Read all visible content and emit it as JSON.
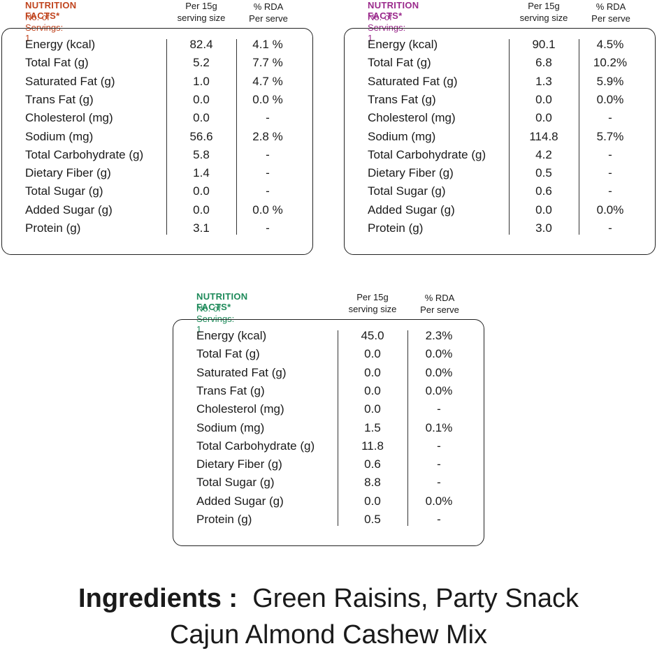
{
  "panels": [
    {
      "title": "NUTRITION FACTS*",
      "servings": "No. of Servings: 1",
      "accent": "#c0441e",
      "col1_head": [
        "Per 15g",
        "serving size"
      ],
      "col2_head": [
        "% RDA",
        "Per serve"
      ],
      "rows": [
        {
          "name": "Energy (kcal)",
          "v1": "82.4",
          "v2": "4.1 %"
        },
        {
          "name": "Total Fat (g)",
          "v1": "5.2",
          "v2": "7.7 %"
        },
        {
          "name": "Saturated Fat (g)",
          "v1": "1.0",
          "v2": "4.7 %"
        },
        {
          "name": "Trans Fat (g)",
          "v1": "0.0",
          "v2": "0.0 %"
        },
        {
          "name": "Cholesterol (mg)",
          "v1": "0.0",
          "v2": "-"
        },
        {
          "name": "Sodium (mg)",
          "v1": "56.6",
          "v2": "2.8 %"
        },
        {
          "name": "Total Carbohydrate (g)",
          "v1": "5.8",
          "v2": "-"
        },
        {
          "name": "Dietary Fiber (g)",
          "v1": "1.4",
          "v2": "-"
        },
        {
          "name": "Total Sugar (g)",
          "v1": "0.0",
          "v2": "-"
        },
        {
          "name": "Added Sugar (g)",
          "v1": "0.0",
          "v2": "0.0 %"
        },
        {
          "name": "Protein (g)",
          "v1": "3.1",
          "v2": "-"
        }
      ]
    },
    {
      "title": "NUTRITION FACTS*",
      "servings": "No. of Servings: 1",
      "accent": "#9b2a8c",
      "col1_head": [
        "Per 15g",
        "serving size"
      ],
      "col2_head": [
        "% RDA",
        "Per serve"
      ],
      "rows": [
        {
          "name": "Energy (kcal)",
          "v1": "90.1",
          "v2": "4.5%"
        },
        {
          "name": "Total Fat (g)",
          "v1": "6.8",
          "v2": "10.2%"
        },
        {
          "name": "Saturated Fat (g)",
          "v1": "1.3",
          "v2": "5.9%"
        },
        {
          "name": "Trans Fat (g)",
          "v1": "0.0",
          "v2": "0.0%"
        },
        {
          "name": "Cholesterol (mg)",
          "v1": "0.0",
          "v2": "-"
        },
        {
          "name": "Sodium (mg)",
          "v1": "114.8",
          "v2": "5.7%"
        },
        {
          "name": "Total Carbohydrate (g)",
          "v1": "4.2",
          "v2": "-"
        },
        {
          "name": "Dietary Fiber (g)",
          "v1": "0.5",
          "v2": "-"
        },
        {
          "name": "Total Sugar (g)",
          "v1": "0.6",
          "v2": "-"
        },
        {
          "name": "Added Sugar (g)",
          "v1": "0.0",
          "v2": "0.0%"
        },
        {
          "name": "Protein (g)",
          "v1": "3.0",
          "v2": "-"
        }
      ]
    },
    {
      "title": "NUTRITION FACTS*",
      "servings": "No. of Servings: 1",
      "accent": "#1e8a5a",
      "col1_head": [
        "Per 15g",
        "serving size"
      ],
      "col2_head": [
        "% RDA",
        "Per serve"
      ],
      "rows": [
        {
          "name": "Energy (kcal)",
          "v1": "45.0",
          "v2": "2.3%"
        },
        {
          "name": "Total Fat (g)",
          "v1": "0.0",
          "v2": "0.0%"
        },
        {
          "name": "Saturated Fat (g)",
          "v1": "0.0",
          "v2": "0.0%"
        },
        {
          "name": "Trans Fat (g)",
          "v1": "0.0",
          "v2": "0.0%"
        },
        {
          "name": "Cholesterol (mg)",
          "v1": "0.0",
          "v2": "-"
        },
        {
          "name": "Sodium (mg)",
          "v1": "1.5",
          "v2": "0.1%"
        },
        {
          "name": "Total Carbohydrate (g)",
          "v1": "11.8",
          "v2": "-"
        },
        {
          "name": "Dietary Fiber (g)",
          "v1": "0.6",
          "v2": "-"
        },
        {
          "name": "Total Sugar (g)",
          "v1": "8.8",
          "v2": "-"
        },
        {
          "name": "Added Sugar (g)",
          "v1": "0.0",
          "v2": "0.0%"
        },
        {
          "name": "Protein (g)",
          "v1": "0.5",
          "v2": "-"
        }
      ]
    }
  ],
  "ingredients": {
    "label": "Ingredients :",
    "line1": "Green Raisins, Party Snack",
    "line2": "Cajun Almond Cashew Mix"
  }
}
